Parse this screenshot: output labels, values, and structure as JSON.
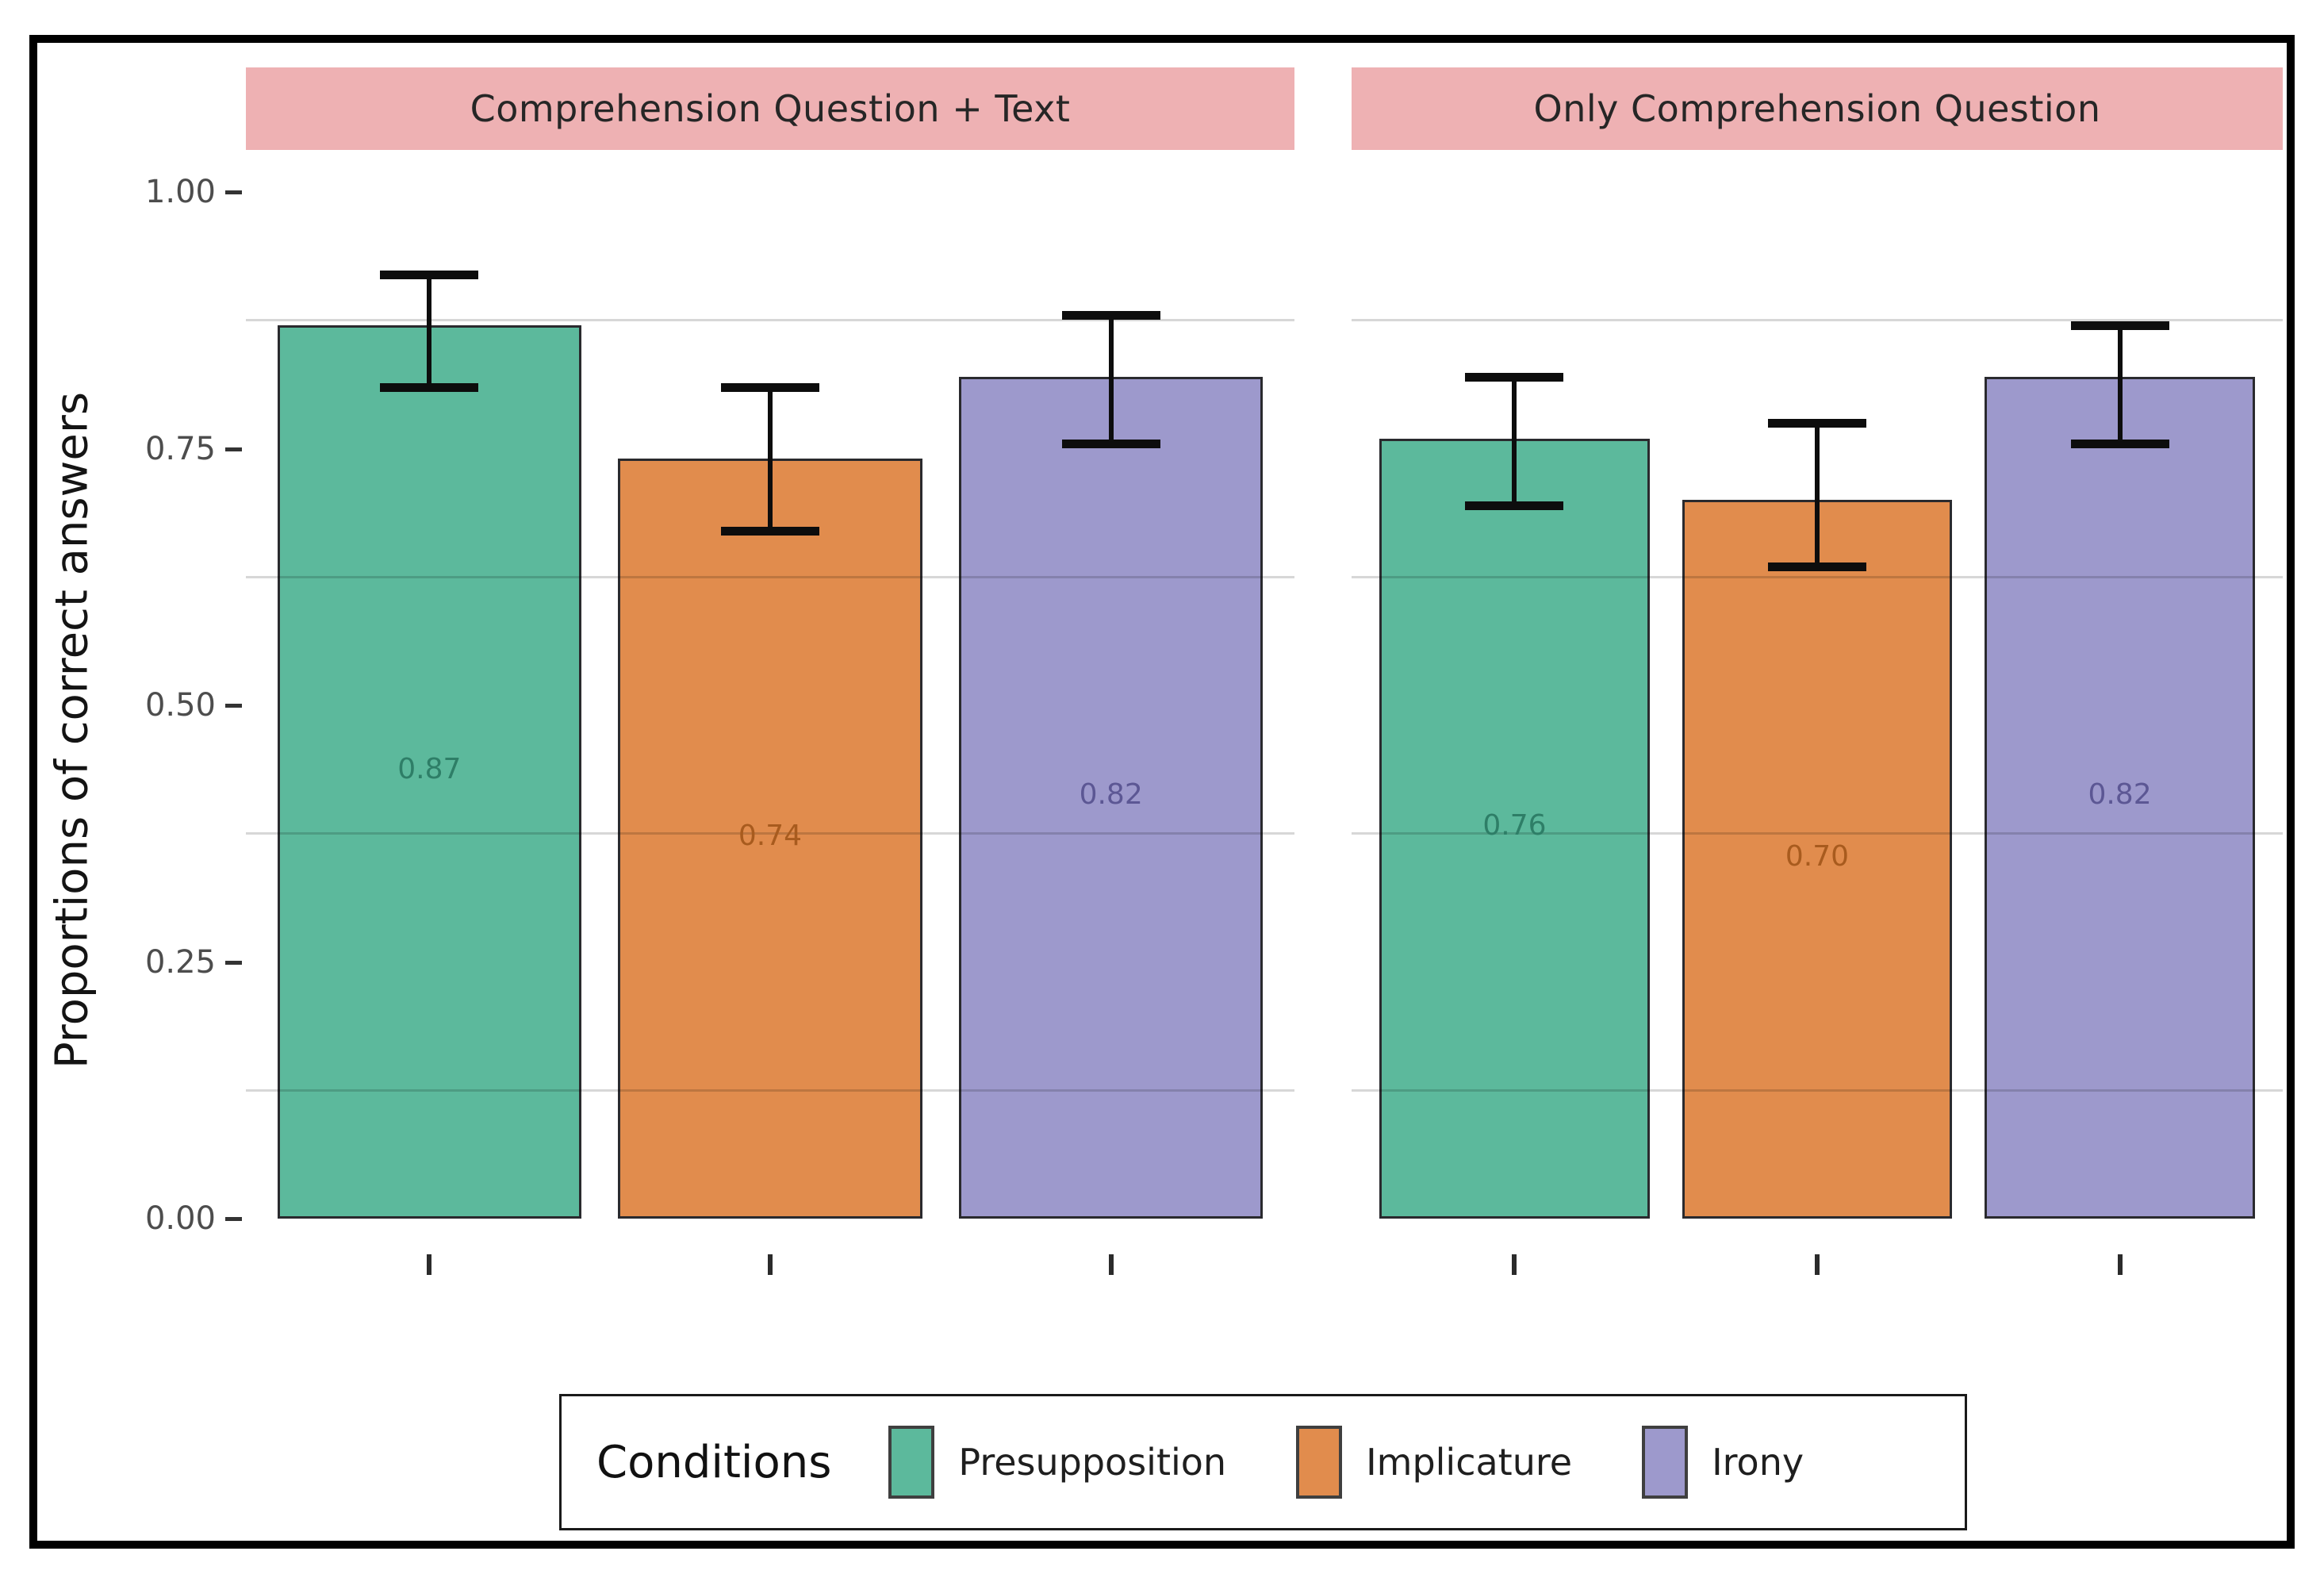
{
  "chart_data": {
    "type": "bar",
    "title": "",
    "facet_titles": [
      "Comprehension Question + Text",
      "Only Comprehension Question"
    ],
    "categories": [
      "Presupposition",
      "Implicature",
      "Irony"
    ],
    "ylabel": "Proportions of correct answers",
    "ylim": [
      0,
      1
    ],
    "yticks": [
      1.0,
      0.75,
      0.5,
      0.25,
      0.0
    ],
    "ytick_labels": [
      "1.00",
      "0.75",
      "0.50",
      "0.25",
      "0.00"
    ],
    "minor_gridlines_y": [
      0.875,
      0.625,
      0.375,
      0.125
    ],
    "x_tick_labels_shown": false,
    "legend": {
      "title": "Conditions",
      "position": "bottom",
      "items": [
        {
          "label": "Presupposition",
          "color": "#5CB99C"
        },
        {
          "label": "Implicature",
          "color": "#E18C4D"
        },
        {
          "label": "Irony",
          "color": "#9D99CC"
        }
      ]
    },
    "series": [
      {
        "facet": "Comprehension Question + Text",
        "values": [
          0.87,
          0.74,
          0.82
        ],
        "bar_labels": [
          "0.87",
          "0.74",
          "0.82"
        ],
        "error_low": [
          0.81,
          0.67,
          0.755
        ],
        "error_high": [
          0.92,
          0.81,
          0.88
        ]
      },
      {
        "facet": "Only Comprehension Question",
        "values": [
          0.76,
          0.7,
          0.82
        ],
        "bar_labels": [
          "0.76",
          "0.70",
          "0.82"
        ],
        "error_low": [
          0.695,
          0.635,
          0.755
        ],
        "error_high": [
          0.82,
          0.775,
          0.87
        ]
      }
    ],
    "colors": {
      "facet_strip": "#EEB1B3",
      "facet_strip_text": "#262626",
      "bar_fills": [
        "#5CB99C",
        "#E18C4D",
        "#9D99CC"
      ],
      "bar_border": "#2A2A2E",
      "bar_label_colors": [
        "#2E7E67",
        "#A85B1E",
        "#5C5794"
      ],
      "error_bar": "#0D0D0D",
      "gridline": "#D8D8D8",
      "axis_text": "#4D4D4D",
      "outer_border": "#000000"
    }
  }
}
